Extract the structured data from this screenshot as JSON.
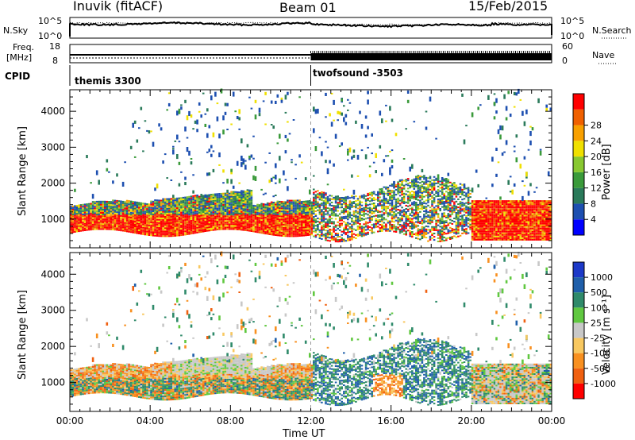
{
  "header": {
    "station": "Inuvik (fitACF)",
    "beam": "Beam 01",
    "date": "15/Feb/2015"
  },
  "top_panels": {
    "nsky_label": "N.Sky",
    "nsky_ticks": [
      "10^5",
      "10^0"
    ],
    "nsearch_label": "N.Search",
    "nsearch_ticks": [
      "10^5",
      "10^0"
    ],
    "freq_label": "Freq.",
    "freq_unit": "[MHz]",
    "freq_ticks": [
      "18",
      "8"
    ],
    "nave_label": "Nave",
    "nave_ticks": [
      "60",
      "0"
    ],
    "cpid_label": "CPID",
    "cpid_modes": [
      {
        "name": "themis 3300",
        "start_hour": 0,
        "end_hour": 12
      },
      {
        "name": "twofsound -3503",
        "start_hour": 12,
        "end_hour": 24
      }
    ]
  },
  "chart_data": [
    {
      "type": "heatmap",
      "quantity": "power",
      "ylabel": "Slant Range [km]",
      "yticks": [
        "1000",
        "2000",
        "3000",
        "4000"
      ],
      "ylim": [
        200,
        4600
      ],
      "xlim": [
        0,
        24
      ],
      "colorbar": {
        "label": "Power [dB]",
        "ticks": [
          "4",
          "8",
          "12",
          "16",
          "20",
          "24",
          "28"
        ],
        "colors": [
          "#0000ff",
          "#1d4fb0",
          "#2a7a5a",
          "#3a9a3a",
          "#88c830",
          "#f0e000",
          "#f8a000",
          "#f06000",
          "#ff0000"
        ]
      },
      "echo_regions": [
        {
          "hours": [
            0,
            12
          ],
          "range_km": [
            600,
            1400
          ],
          "value": "strong"
        },
        {
          "hours": [
            12,
            21
          ],
          "range_km": [
            500,
            2200
          ],
          "value": "moderate"
        },
        {
          "hours": [
            20,
            24
          ],
          "range_km": [
            400,
            1500
          ],
          "value": "strong"
        }
      ]
    },
    {
      "type": "heatmap",
      "quantity": "velocity",
      "ylabel": "Slant Range [km]",
      "yticks": [
        "1000",
        "2000",
        "3000",
        "4000"
      ],
      "ylim": [
        200,
        4600
      ],
      "xlim": [
        0,
        24
      ],
      "xlabel": "Time UT",
      "xticks": [
        "00:00",
        "04:00",
        "08:00",
        "12:00",
        "16:00",
        "20:00",
        "00:00"
      ],
      "colorbar": {
        "label": "Velocity [m s⁻¹]",
        "ticks": [
          "1000",
          "500",
          "100",
          "25",
          "-25",
          "-100",
          "-500",
          "-1000"
        ],
        "colors": [
          "#1c39c8",
          "#1f5faa",
          "#2f8a6a",
          "#60c840",
          "#c8c8c8",
          "#f8c860",
          "#f89020",
          "#f06010",
          "#ff0000"
        ]
      }
    }
  ]
}
